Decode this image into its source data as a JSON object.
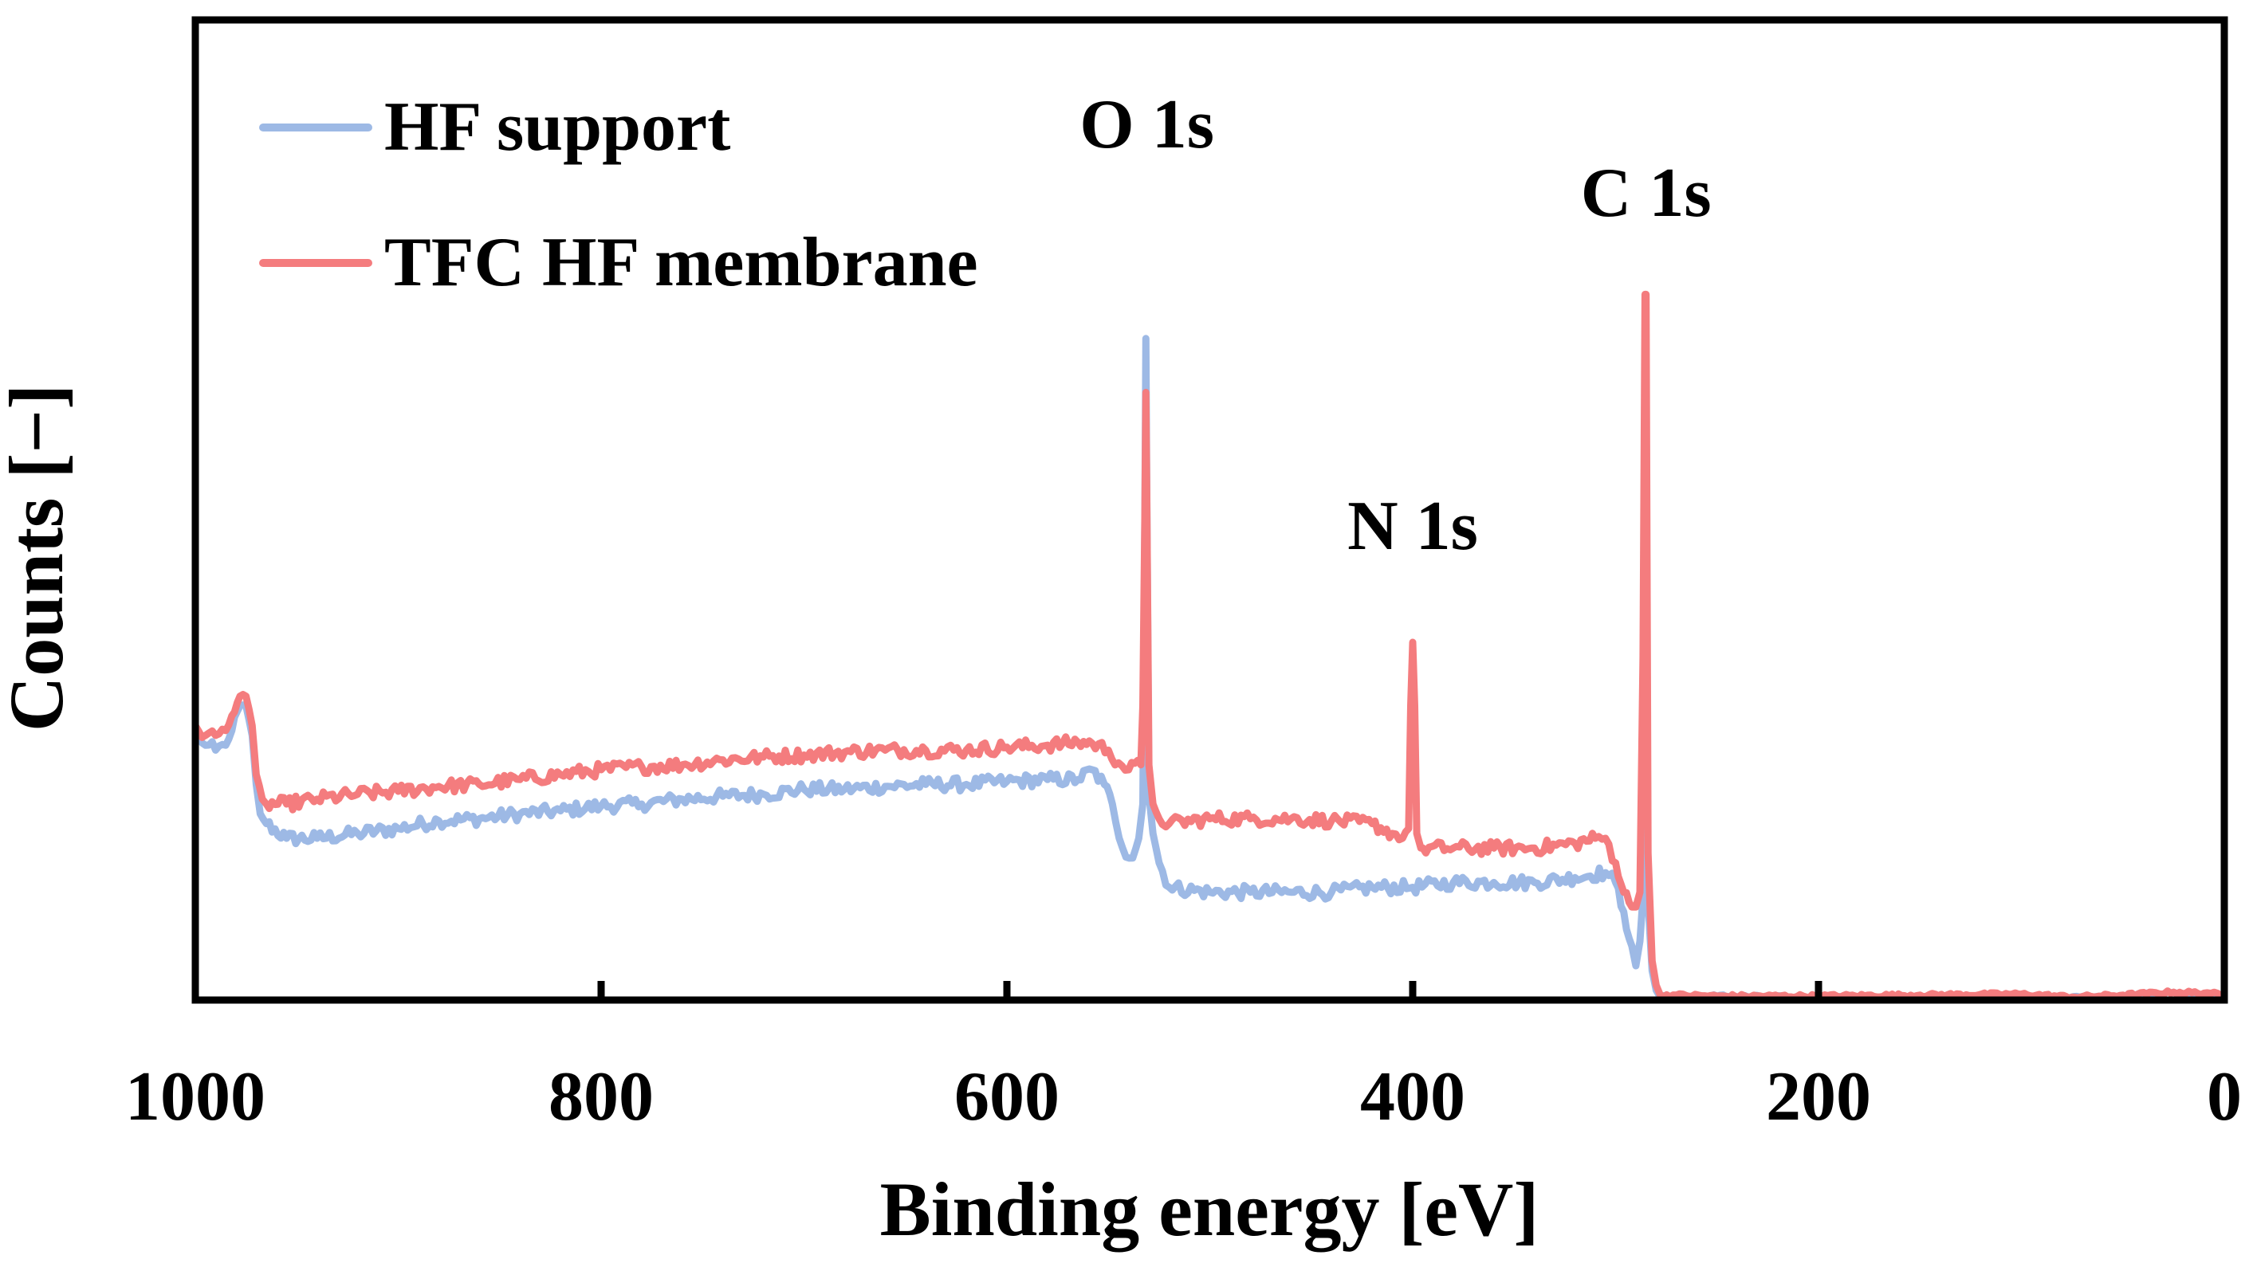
{
  "chart_data": {
    "type": "line",
    "title": "",
    "xlabel": "Binding energy [eV]",
    "ylabel": "Counts [−]",
    "xlim": [
      1000,
      0
    ],
    "ylim": [
      0,
      100
    ],
    "x_ticks": [
      1000,
      800,
      600,
      400,
      200,
      0
    ],
    "x_tick_labels": [
      "1000",
      "800",
      "600",
      "400",
      "200",
      "0"
    ],
    "y_tick_labels": [],
    "grid": false,
    "legend_position": "top-left",
    "series": [
      {
        "name": "HF support",
        "color": "#9DB9E5",
        "points": [
          [
            1000,
            27.5
          ],
          [
            995,
            26
          ],
          [
            990,
            25.5
          ],
          [
            985,
            26
          ],
          [
            982,
            27.5
          ],
          [
            978,
            30
          ],
          [
            975,
            30
          ],
          [
            972,
            27
          ],
          [
            970,
            22
          ],
          [
            968,
            19
          ],
          [
            965,
            18
          ],
          [
            955,
            16.5
          ],
          [
            940,
            16.5
          ],
          [
            920,
            17
          ],
          [
            900,
            17.5
          ],
          [
            880,
            18.3
          ],
          [
            860,
            18.5
          ],
          [
            840,
            19
          ],
          [
            820,
            19.3
          ],
          [
            800,
            19.8
          ],
          [
            780,
            20
          ],
          [
            760,
            20.5
          ],
          [
            740,
            20.8
          ],
          [
            720,
            21
          ],
          [
            700,
            21.5
          ],
          [
            680,
            21.5
          ],
          [
            660,
            21.8
          ],
          [
            640,
            22
          ],
          [
            620,
            22
          ],
          [
            600,
            22.3
          ],
          [
            580,
            22.5
          ],
          [
            565,
            22.5
          ],
          [
            558,
            23.5
          ],
          [
            552,
            22
          ],
          [
            548,
            20
          ],
          [
            543,
            15.5
          ],
          [
            538,
            14.5
          ],
          [
            535,
            16.5
          ],
          [
            533,
            20
          ],
          [
            532,
            50
          ],
          [
            531.5,
            67.5
          ],
          [
            531,
            50
          ],
          [
            530,
            21
          ],
          [
            528,
            17
          ],
          [
            525,
            14
          ],
          [
            520,
            11.5
          ],
          [
            500,
            11
          ],
          [
            480,
            11
          ],
          [
            460,
            11
          ],
          [
            440,
            11
          ],
          [
            420,
            11.5
          ],
          [
            400,
            11.5
          ],
          [
            380,
            12
          ],
          [
            360,
            12
          ],
          [
            340,
            12
          ],
          [
            320,
            12.5
          ],
          [
            305,
            13
          ],
          [
            300,
            12
          ],
          [
            296,
            9
          ],
          [
            292,
            5.5
          ],
          [
            290,
            3.5
          ],
          [
            288,
            6
          ],
          [
            286,
            12
          ],
          [
            285.5,
            35
          ],
          [
            285,
            52
          ],
          [
            284.5,
            35
          ],
          [
            284,
            10
          ],
          [
            282,
            3
          ],
          [
            280,
            1
          ],
          [
            278,
            0.3
          ],
          [
            270,
            0.3
          ],
          [
            250,
            0.4
          ],
          [
            200,
            0.2
          ],
          [
            150,
            0.2
          ],
          [
            100,
            0.2
          ],
          [
            50,
            0.3
          ],
          [
            25,
            0.8
          ],
          [
            20,
            0.2
          ],
          [
            10,
            0.2
          ],
          [
            5,
            0.5
          ],
          [
            0,
            0
          ]
        ]
      },
      {
        "name": "TFC HF membrane",
        "color": "#F47C7E",
        "points": [
          [
            1000,
            28
          ],
          [
            995,
            27
          ],
          [
            990,
            27
          ],
          [
            985,
            27.5
          ],
          [
            982,
            29
          ],
          [
            978,
            31
          ],
          [
            975,
            31
          ],
          [
            972,
            28
          ],
          [
            970,
            23
          ],
          [
            967,
            20.5
          ],
          [
            965,
            20
          ],
          [
            955,
            20
          ],
          [
            940,
            20.5
          ],
          [
            920,
            21
          ],
          [
            900,
            21.3
          ],
          [
            880,
            21.8
          ],
          [
            860,
            22
          ],
          [
            840,
            22.5
          ],
          [
            820,
            23
          ],
          [
            800,
            23.5
          ],
          [
            780,
            23.8
          ],
          [
            760,
            24
          ],
          [
            740,
            24.5
          ],
          [
            720,
            24.8
          ],
          [
            700,
            25
          ],
          [
            680,
            25.3
          ],
          [
            660,
            25.5
          ],
          [
            640,
            25.5
          ],
          [
            620,
            25.5
          ],
          [
            600,
            25.8
          ],
          [
            580,
            26
          ],
          [
            565,
            26.3
          ],
          [
            558,
            26.2
          ],
          [
            550,
            25.5
          ],
          [
            545,
            24.2
          ],
          [
            540,
            23.5
          ],
          [
            534,
            24
          ],
          [
            533,
            30
          ],
          [
            532,
            50
          ],
          [
            531.5,
            62
          ],
          [
            531,
            50
          ],
          [
            530,
            24
          ],
          [
            528,
            20
          ],
          [
            525,
            18.5
          ],
          [
            520,
            18
          ],
          [
            500,
            18.5
          ],
          [
            480,
            18.5
          ],
          [
            460,
            18.5
          ],
          [
            440,
            18.3
          ],
          [
            420,
            18
          ],
          [
            410,
            17
          ],
          [
            405,
            16.5
          ],
          [
            402,
            17.5
          ],
          [
            401,
            30
          ],
          [
            400,
            36.5
          ],
          [
            399,
            30
          ],
          [
            398,
            17
          ],
          [
            396,
            15.5
          ],
          [
            395,
            15.5
          ],
          [
            380,
            15.5
          ],
          [
            360,
            15.5
          ],
          [
            340,
            15.5
          ],
          [
            320,
            16
          ],
          [
            310,
            16.5
          ],
          [
            305,
            16.5
          ],
          [
            300,
            14
          ],
          [
            296,
            11
          ],
          [
            292,
            9.5
          ],
          [
            290,
            9.5
          ],
          [
            288,
            11
          ],
          [
            286.5,
            35
          ],
          [
            285.5,
            72
          ],
          [
            285,
            72
          ],
          [
            284.5,
            45
          ],
          [
            284,
            15
          ],
          [
            282,
            4
          ],
          [
            280,
            1.5
          ],
          [
            278,
            0.5
          ],
          [
            270,
            0.5
          ],
          [
            250,
            0.4
          ],
          [
            200,
            0.4
          ],
          [
            150,
            0.5
          ],
          [
            100,
            0.6
          ],
          [
            75,
            0.3
          ],
          [
            50,
            0.5
          ],
          [
            25,
            0.8
          ],
          [
            10,
            0.7
          ],
          [
            5,
            0.8
          ],
          [
            0,
            0
          ]
        ]
      }
    ],
    "annotations": [
      {
        "text": "O 1s",
        "x": 531,
        "y": 87
      },
      {
        "text": "N 1s",
        "x": 400,
        "y": 46
      },
      {
        "text": "C 1s",
        "x": 285,
        "y": 80
      }
    ]
  }
}
